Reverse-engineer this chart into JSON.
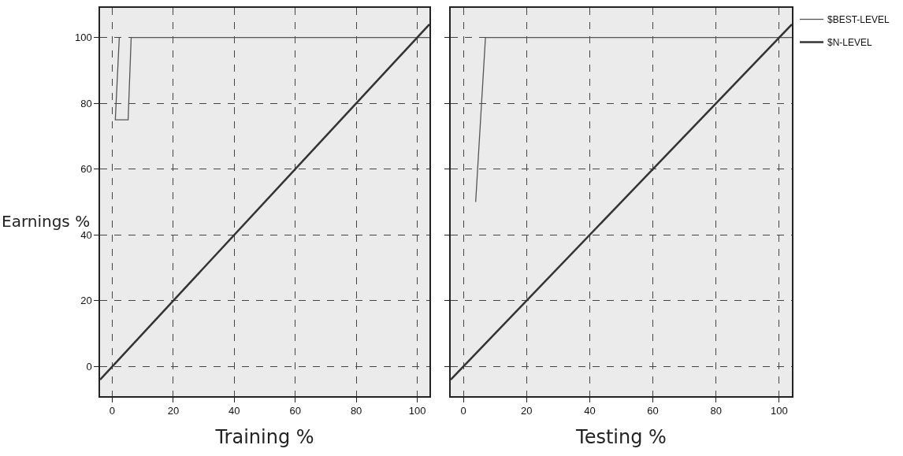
{
  "chart_data": [
    {
      "type": "line",
      "xlabel": "Training %",
      "ylabel": "Earnings %",
      "xlim": [
        -4,
        104
      ],
      "ylim": [
        -9,
        109
      ],
      "xticks": [
        0,
        20,
        40,
        60,
        80,
        100
      ],
      "yticks": [
        0,
        20,
        40,
        60,
        80,
        100
      ],
      "grid": true,
      "line_style": "solid",
      "legend": "right",
      "series": [
        {
          "name": "$BEST-LEVEL",
          "color": "#555555",
          "x": [
            2.3,
            1,
            5.2,
            6.2,
            104
          ],
          "values": [
            100,
            75,
            75,
            100,
            100
          ]
        },
        {
          "name": "$N-LEVEL",
          "color": "#333333",
          "x": [
            -4,
            104
          ],
          "values": [
            -4,
            104
          ]
        }
      ]
    },
    {
      "type": "line",
      "xlabel": "Testing %",
      "xlim": [
        -4,
        104
      ],
      "ylim": [
        -9,
        109
      ],
      "xticks": [
        0,
        20,
        40,
        60,
        80,
        100
      ],
      "yticks": [
        0,
        20,
        40,
        60,
        80,
        100
      ],
      "grid": true,
      "line_style": "solid",
      "legend": "right",
      "tick_labels": "x",
      "series": [
        {
          "name": "$BEST-LEVEL",
          "color": "#555555",
          "x": [
            3.9,
            7,
            104
          ],
          "values": [
            50,
            100,
            100
          ]
        },
        {
          "name": "$N-LEVEL",
          "color": "#333333",
          "x": [
            -4,
            104
          ],
          "values": [
            -4,
            104
          ]
        }
      ]
    }
  ]
}
